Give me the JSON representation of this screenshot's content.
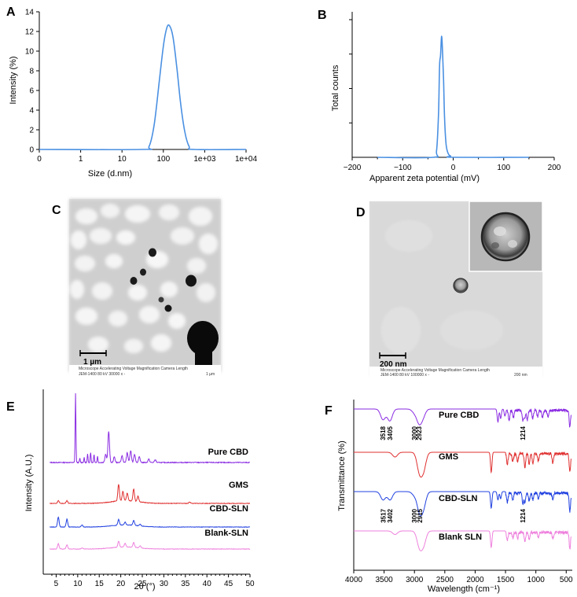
{
  "panels": {
    "A": "A",
    "B": "B",
    "C": "C",
    "D": "D",
    "E": "E",
    "F": "F"
  },
  "chart_data": [
    {
      "panel": "A",
      "type": "line",
      "xlabel": "Size (d.nm)",
      "ylabel": "Intensity (%)",
      "xscale": "log",
      "xlim": [
        0.1,
        10000
      ],
      "ylim": [
        0,
        14
      ],
      "x_tick_labels": [
        "0",
        "1",
        "10",
        "100",
        "1e+03",
        "1e+04"
      ],
      "x_tick_values": [
        0.1,
        1,
        10,
        100,
        1000,
        10000
      ],
      "y_ticks": [
        0,
        2,
        4,
        6,
        8,
        10,
        12,
        14
      ],
      "color": "#4a90e2",
      "x": [
        0.1,
        30,
        45,
        60,
        80,
        100,
        120,
        140,
        170,
        210,
        260,
        330,
        420,
        550,
        10000
      ],
      "y": [
        0,
        0,
        0.3,
        2.5,
        7,
        10.5,
        12.3,
        12.6,
        11.5,
        8.5,
        4.8,
        1.8,
        0.3,
        0,
        0
      ]
    },
    {
      "panel": "B",
      "type": "line",
      "xlabel": "Apparent zeta potential (mV)",
      "ylabel": "Total counts",
      "xlim": [
        -200,
        200
      ],
      "x_ticks": [
        -200,
        -100,
        0,
        100,
        200
      ],
      "color": "#4a90e2",
      "x": [
        -150,
        -40,
        -33,
        -29,
        -27,
        -25,
        -23,
        -21,
        -19,
        -17,
        -14,
        -10,
        -5,
        0,
        150
      ],
      "y": [
        0,
        0,
        0.05,
        0.35,
        0.72,
        0.8,
        0.95,
        0.82,
        0.6,
        0.3,
        0.1,
        0.03,
        0.01,
        0,
        0
      ]
    },
    {
      "panel": "E",
      "type": "line",
      "xlabel": "2θ (°)",
      "ylabel": "Intensity (A.U.)",
      "xlim": [
        2,
        50
      ],
      "x_ticks": [
        5,
        10,
        15,
        20,
        25,
        30,
        35,
        40,
        45,
        50
      ],
      "series": [
        {
          "name": "Pure CBD",
          "color": "#8a2be2",
          "peaks": [
            [
              9.5,
              1.0
            ],
            [
              10.5,
              0.06
            ],
            [
              11.5,
              0.07
            ],
            [
              12.3,
              0.12
            ],
            [
              13,
              0.15
            ],
            [
              13.8,
              0.12
            ],
            [
              14.6,
              0.09
            ],
            [
              16.5,
              0.12
            ],
            [
              17.2,
              0.45
            ],
            [
              18.5,
              0.08
            ],
            [
              20.3,
              0.1
            ],
            [
              21.5,
              0.14
            ],
            [
              22.3,
              0.17
            ],
            [
              23.2,
              0.12
            ],
            [
              24.3,
              0.08
            ],
            [
              26.5,
              0.05
            ],
            [
              28,
              0.04
            ]
          ]
        },
        {
          "name": "GMS",
          "color": "#e03030",
          "peaks": [
            [
              5.5,
              0.06
            ],
            [
              7.5,
              0.06
            ],
            [
              19.5,
              0.35
            ],
            [
              20.5,
              0.2
            ],
            [
              21.5,
              0.16
            ],
            [
              23,
              0.26
            ],
            [
              24,
              0.12
            ],
            [
              36,
              0.03
            ]
          ]
        },
        {
          "name": "CBD-SLN",
          "color": "#2040e0",
          "peaks": [
            [
              5.5,
              0.28
            ],
            [
              7.5,
              0.22
            ],
            [
              11,
              0.06
            ],
            [
              19.5,
              0.16
            ],
            [
              21,
              0.08
            ],
            [
              23,
              0.14
            ],
            [
              24.5,
              0.05
            ]
          ]
        },
        {
          "name": "Blank-SLN",
          "color": "#ee80dd",
          "peaks": [
            [
              5.5,
              0.15
            ],
            [
              7.5,
              0.12
            ],
            [
              11,
              0.03
            ],
            [
              19.5,
              0.17
            ],
            [
              21,
              0.1
            ],
            [
              23,
              0.14
            ],
            [
              24.5,
              0.06
            ]
          ]
        }
      ]
    },
    {
      "panel": "F",
      "type": "line",
      "xlabel": "Wavelength (cm⁻¹)",
      "ylabel": "Transmittance (%)",
      "xlim": [
        4000,
        400
      ],
      "x_ticks": [
        4000,
        3500,
        3000,
        2500,
        2000,
        1500,
        1000,
        500
      ],
      "series": [
        {
          "name": "Pure CBD",
          "color": "#8a2be2",
          "peak_labels": [
            "3518",
            "3405",
            "3000",
            "2923",
            "1214"
          ]
        },
        {
          "name": "GMS",
          "color": "#e03030",
          "peak_labels": []
        },
        {
          "name": "CBD-SLN",
          "color": "#2040e0",
          "peak_labels": [
            "3517",
            "3402",
            "3000",
            "2915",
            "1214"
          ]
        },
        {
          "name": "Blank SLN",
          "color": "#ee80dd",
          "peak_labels": []
        }
      ]
    }
  ],
  "micrographs": {
    "C": {
      "scale_label": "1 µm",
      "caption_left": "Microscope Accelerating Voltage Magnification Camera Length",
      "caption_values": "JEM-1400       80 kV        30000 x          -",
      "caption_right": "1 µm"
    },
    "D": {
      "scale_label": "200 nm",
      "caption_left": "Microscope Accelerating Voltage Magnification Camera Length",
      "caption_values": "JEM-1400       80 kV        100000 x         -",
      "caption_right": "200 nm"
    }
  }
}
